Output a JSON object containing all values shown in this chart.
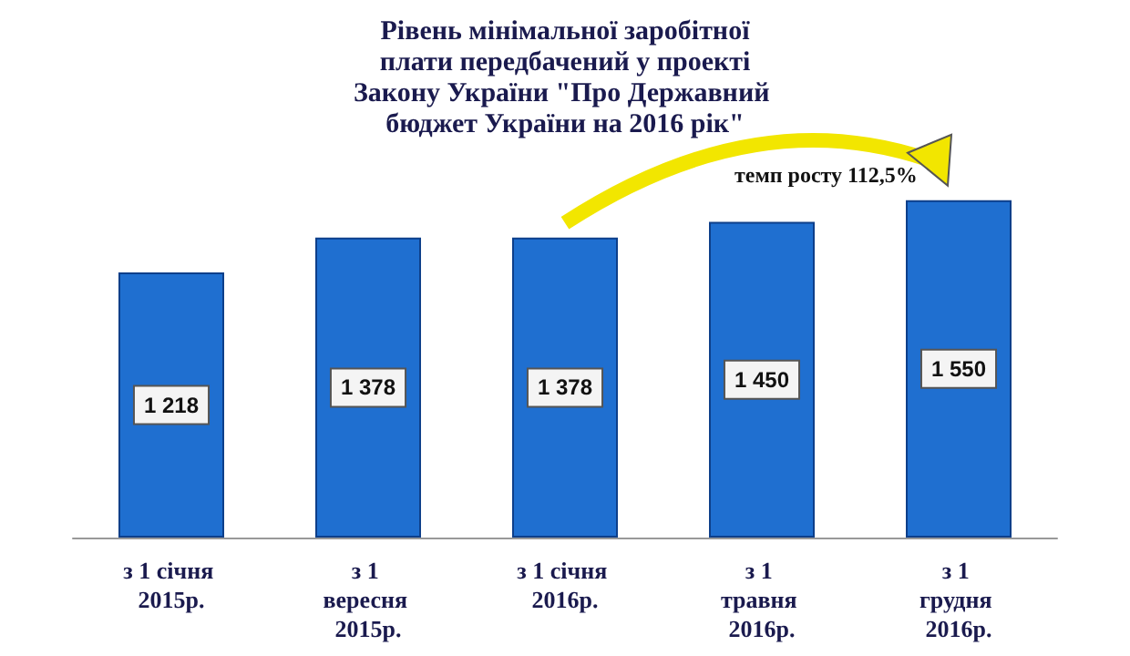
{
  "chart_data": {
    "type": "bar",
    "title": "Рівень мінімальної заробітної плати передбачений у проекті Закону України \"Про Державний бюджет України на 2016 рік\"",
    "categories": [
      "з 1 січня 2015р.",
      "з 1 вересня 2015р.",
      "з 1 січня 2016р.",
      "з 1 травня 2016р.",
      "з 1 грудня 2016р."
    ],
    "values": [
      1218,
      1378,
      1378,
      1450,
      1550
    ],
    "color": "#1f6fd0",
    "data_labels": true,
    "annotations": [
      "темп росту 112,5%"
    ]
  }
}
